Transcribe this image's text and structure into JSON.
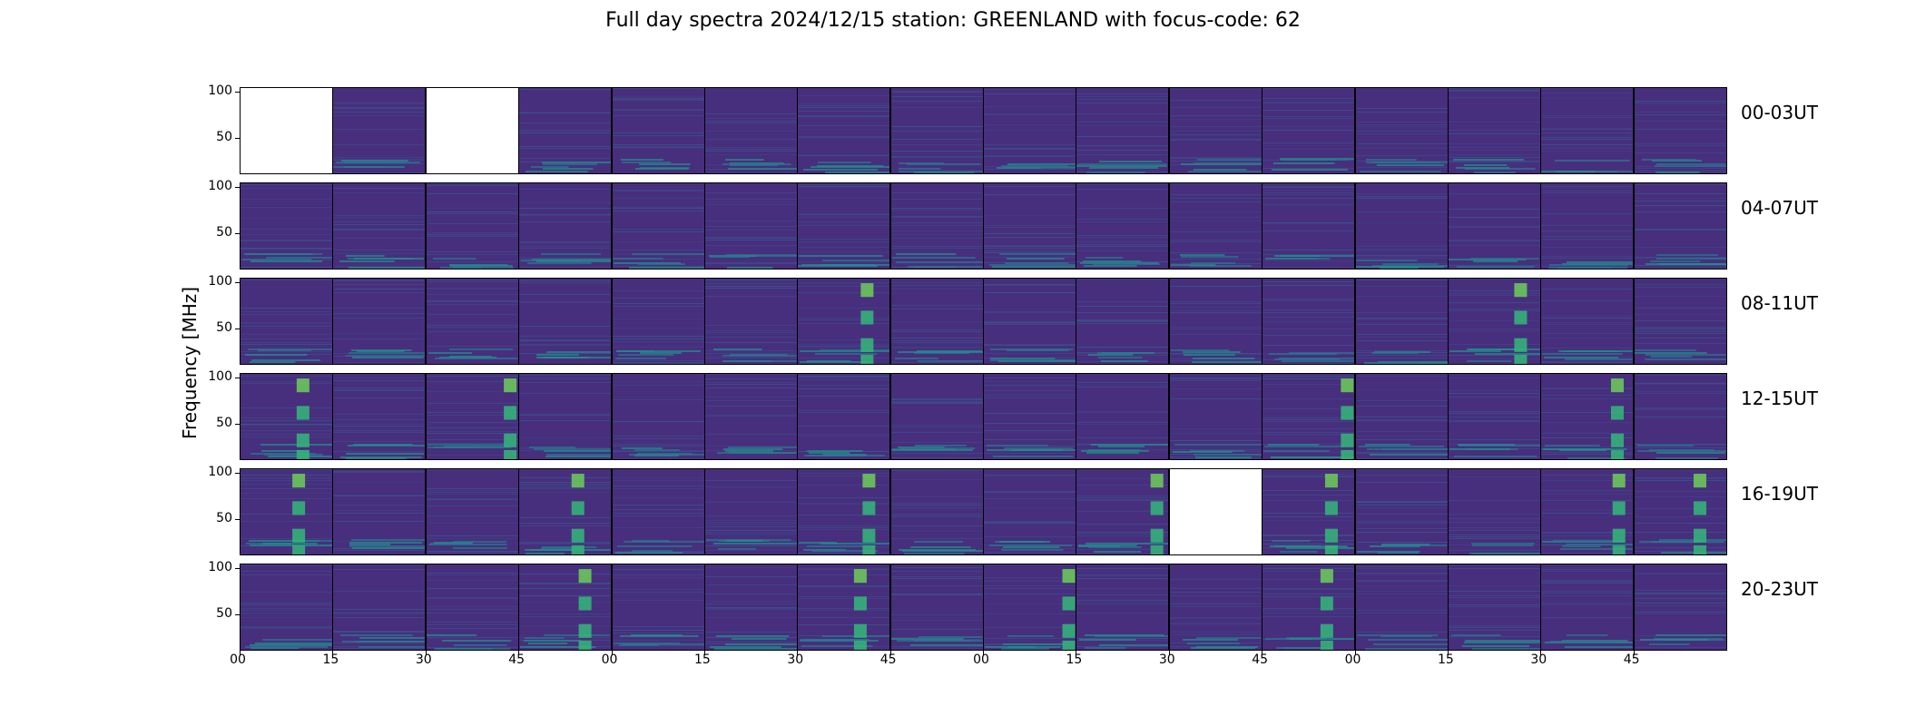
{
  "title": "Full day spectra 2024/12/15 station: GREENLAND with focus-code: 62",
  "chart_data": {
    "type": "heatmap",
    "title": "Full day spectra 2024/12/15 station: GREENLAND with focus-code: 62",
    "ylabel": "Frequency [MHz]",
    "ylim": [
      10,
      105
    ],
    "yticks": [
      50,
      100
    ],
    "yticks_labels": [
      "50",
      "100"
    ],
    "xtick_labels": [
      "00",
      "15",
      "30",
      "45",
      "00",
      "15",
      "30",
      "45",
      "00",
      "15",
      "30",
      "45",
      "00",
      "15",
      "30",
      "45"
    ],
    "columns_per_row": 16,
    "minutes_per_panel": 15,
    "colormap": "viridis",
    "colors": {
      "background": "#472f7d",
      "low": "#44135a",
      "high": "#6ece58"
    },
    "rows": [
      {
        "label": "00-03UT",
        "missing": [
          0,
          2
        ],
        "features": {}
      },
      {
        "label": "04-07UT",
        "missing": [],
        "features": {}
      },
      {
        "label": "08-11UT",
        "missing": [],
        "features": {
          "bursts": [
            6,
            13
          ]
        }
      },
      {
        "label": "12-15UT",
        "missing": [],
        "features": {
          "bursts": [
            0,
            2,
            11,
            14
          ]
        }
      },
      {
        "label": "16-19UT",
        "missing": [
          10
        ],
        "features": {
          "bursts": [
            0,
            3,
            6,
            9,
            11,
            14,
            15
          ]
        }
      },
      {
        "label": "20-23UT",
        "missing": [],
        "features": {
          "bursts": [
            3,
            6,
            8,
            11
          ]
        }
      }
    ]
  }
}
